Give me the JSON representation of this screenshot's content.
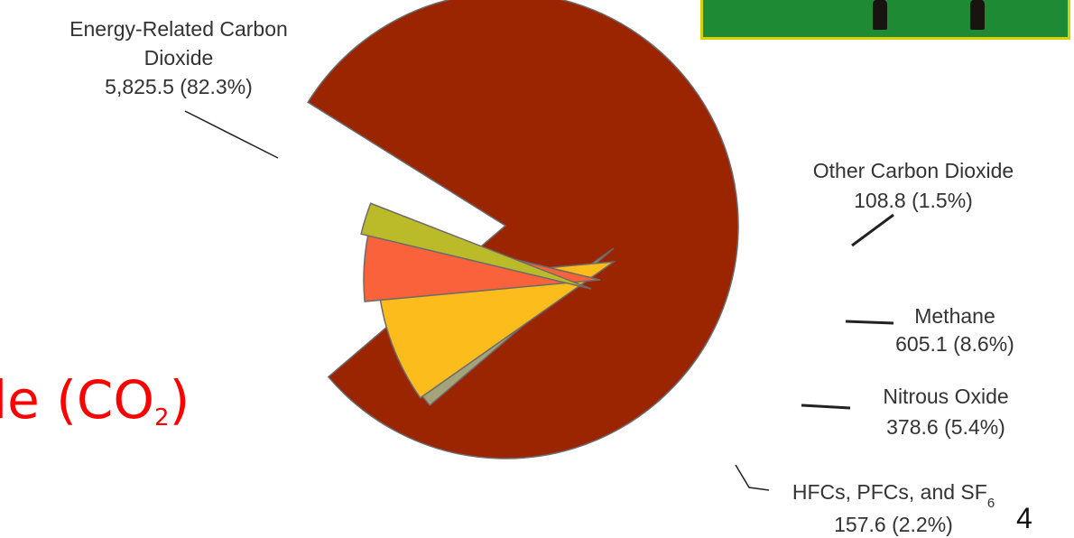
{
  "slide": {
    "title_main": "le (CO",
    "title_sub": "2",
    "title_end": ")",
    "page_number": "4"
  },
  "colors": {
    "energy_co2": "#9b2500",
    "other_co2": "#a5a37a",
    "methane": "#fbbc1c",
    "nitrous_oxide": "#f9623a",
    "hfcs": "#bbbb2a",
    "slide_title": "#ff0000"
  },
  "chart_data": {
    "type": "pie",
    "slices": [
      {
        "name": "Energy-Related Carbon Dioxide",
        "value": 5825.5,
        "percent": 82.3,
        "label_lines": [
          "Energy-Related Carbon",
          "Dioxide",
          "5,825.5 (82.3%)"
        ]
      },
      {
        "name": "Other Carbon Dioxide",
        "value": 108.8,
        "percent": 1.5,
        "label_lines": [
          "Other Carbon Dioxide",
          "108.8 (1.5%)"
        ]
      },
      {
        "name": "Methane",
        "value": 605.1,
        "percent": 8.6,
        "label_lines": [
          "Methane",
          "605.1 (8.6%)"
        ]
      },
      {
        "name": "Nitrous Oxide",
        "value": 378.6,
        "percent": 5.4,
        "label_lines": [
          "Nitrous Oxide",
          "378.6 (5.4%)"
        ]
      },
      {
        "name": "HFCs, PFCs, and SF6",
        "value": 157.6,
        "percent": 2.2,
        "label_lines": [
          "HFCs, PFCs, and SF",
          "157.6 (2.2%)"
        ],
        "label_subscript": "6"
      }
    ]
  }
}
